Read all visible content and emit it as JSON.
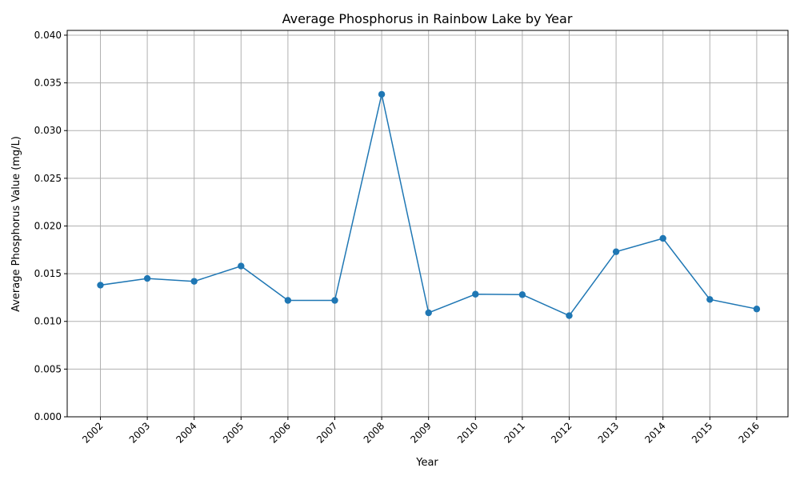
{
  "chart_data": {
    "type": "line",
    "title": "Average Phosphorus in Rainbow Lake by Year",
    "xlabel": "Year",
    "ylabel": "Average Phosphorus Value (mg/L)",
    "x": [
      "2002",
      "2003",
      "2004",
      "2005",
      "2006",
      "2007",
      "2008",
      "2009",
      "2010",
      "2011",
      "2012",
      "2013",
      "2014",
      "2015",
      "2016"
    ],
    "series": [
      {
        "values": [
          0.0138,
          0.0145,
          0.0142,
          0.0158,
          0.0122,
          0.0122,
          0.0338,
          0.0109,
          0.01285,
          0.0128,
          0.0106,
          0.0173,
          0.0187,
          0.0123,
          0.0113
        ],
        "color": "#1f77b4",
        "marker": "circle"
      }
    ],
    "ylim": [
      0,
      0.0405
    ],
    "yticks": [
      "0.000",
      "0.005",
      "0.010",
      "0.015",
      "0.020",
      "0.025",
      "0.030",
      "0.035",
      "0.040"
    ],
    "grid": true,
    "legend": "none"
  }
}
